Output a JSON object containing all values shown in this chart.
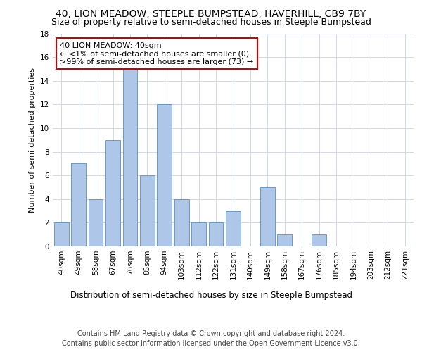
{
  "title": "40, LION MEADOW, STEEPLE BUMPSTEAD, HAVERHILL, CB9 7BY",
  "subtitle": "Size of property relative to semi-detached houses in Steeple Bumpstead",
  "xlabel": "Distribution of semi-detached houses by size in Steeple Bumpstead",
  "ylabel": "Number of semi-detached properties",
  "categories": [
    "40sqm",
    "49sqm",
    "58sqm",
    "67sqm",
    "76sqm",
    "85sqm",
    "94sqm",
    "103sqm",
    "112sqm",
    "122sqm",
    "131sqm",
    "140sqm",
    "149sqm",
    "158sqm",
    "167sqm",
    "176sqm",
    "185sqm",
    "194sqm",
    "203sqm",
    "212sqm",
    "221sqm"
  ],
  "values": [
    2,
    7,
    4,
    9,
    15,
    6,
    12,
    4,
    2,
    2,
    3,
    0,
    5,
    1,
    0,
    1,
    0,
    0,
    0,
    0,
    0
  ],
  "bar_color": "#aec6e8",
  "bar_edge_color": "#5a8fc0",
  "highlight_index": 0,
  "annotation_text": "40 LION MEADOW: 40sqm\n← <1% of semi-detached houses are smaller (0)\n>99% of semi-detached houses are larger (73) →",
  "annotation_box_color": "#ffffff",
  "annotation_box_edge_color": "#cc0000",
  "ylim": [
    0,
    18
  ],
  "yticks": [
    0,
    2,
    4,
    6,
    8,
    10,
    12,
    14,
    16,
    18
  ],
  "background_color": "#ffffff",
  "grid_color": "#d0d8e8",
  "footer_text": "Contains HM Land Registry data © Crown copyright and database right 2024.\nContains public sector information licensed under the Open Government Licence v3.0.",
  "title_fontsize": 10,
  "subtitle_fontsize": 9,
  "xlabel_fontsize": 8.5,
  "ylabel_fontsize": 8,
  "tick_fontsize": 7.5,
  "annotation_fontsize": 8,
  "footer_fontsize": 7
}
